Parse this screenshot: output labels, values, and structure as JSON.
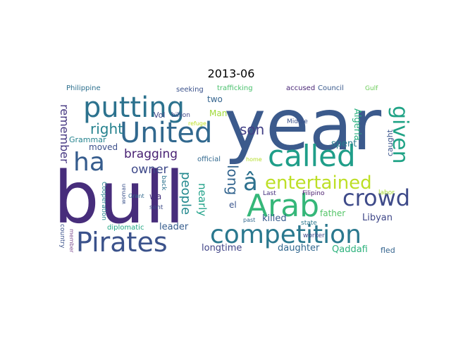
{
  "figure": {
    "title": "2013-06"
  },
  "wordcloud": {
    "palette": "viridis",
    "words": [
      {
        "text": "year",
        "color": "#3b5a8c"
      },
      {
        "text": "bull",
        "color": "#472d7b"
      },
      {
        "text": "putting",
        "color": "#2c728e"
      },
      {
        "text": "United",
        "color": "#31688e"
      },
      {
        "text": "called",
        "color": "#1f9e89"
      },
      {
        "text": "Arab",
        "color": "#35b779"
      },
      {
        "text": "competition",
        "color": "#2a788e"
      },
      {
        "text": "Pirates",
        "color": "#3b528b"
      },
      {
        "text": "ha",
        "color": "#365c8d"
      },
      {
        "text": "given",
        "color": "#20a386"
      },
      {
        "text": "crowd",
        "color": "#3e4a89"
      },
      {
        "text": "entertained",
        "color": "#bddf26"
      },
      {
        "text": "â",
        "color": "#2d718e"
      },
      {
        "text": "bragging",
        "color": "#482173"
      },
      {
        "text": "owner",
        "color": "#3e4989"
      },
      {
        "text": "right",
        "color": "#26828e"
      },
      {
        "text": "son",
        "color": "#424086"
      },
      {
        "text": "long",
        "color": "#32648e"
      },
      {
        "text": "remember",
        "color": "#453781"
      },
      {
        "text": "people",
        "color": "#23898e"
      },
      {
        "text": "nearly",
        "color": "#1fa188"
      },
      {
        "text": "Algeria",
        "color": "#2ab07f"
      },
      {
        "text": "caught",
        "color": "#3a548c"
      },
      {
        "text": "spent",
        "color": "#287c8e"
      },
      {
        "text": "Libyan",
        "color": "#3f4788"
      },
      {
        "text": "killed",
        "color": "#375b8d"
      },
      {
        "text": "father",
        "color": "#54c568"
      },
      {
        "text": "leader",
        "color": "#365d8d"
      },
      {
        "text": "longtime",
        "color": "#414487"
      },
      {
        "text": "daughter",
        "color": "#31678e"
      },
      {
        "text": "Qaddafi",
        "color": "#2db27d"
      },
      {
        "text": "fled",
        "color": "#33638d"
      },
      {
        "text": "moved",
        "color": "#3c4f8a"
      },
      {
        "text": "Grammar",
        "color": "#25838e"
      },
      {
        "text": "two",
        "color": "#33638d"
      },
      {
        "text": "Man",
        "color": "#a0da39"
      },
      {
        "text": "el",
        "color": "#3a548c"
      },
      {
        "text": "wa",
        "color": "#46327e"
      },
      {
        "text": "Vol",
        "color": "#404688"
      },
      {
        "text": "official",
        "color": "#31688e"
      },
      {
        "text": "seeking",
        "color": "#3b528b"
      },
      {
        "text": "trafficking",
        "color": "#4ac16d"
      },
      {
        "text": "accused",
        "color": "#482475"
      },
      {
        "text": "Council",
        "color": "#38598c"
      },
      {
        "text": "Gulf",
        "color": "#6ccd5a"
      },
      {
        "text": "Philippine",
        "color": "#2d708e"
      },
      {
        "text": "billion",
        "color": "#3f4889"
      },
      {
        "text": "refuge",
        "color": "#bddf26"
      },
      {
        "text": "Middle",
        "color": "#3b528b"
      },
      {
        "text": "home",
        "color": "#b5de2b"
      },
      {
        "text": "Grant",
        "color": "#30698e"
      },
      {
        "text": "back",
        "color": "#2c738e"
      },
      {
        "text": "woman",
        "color": "#3b528b"
      },
      {
        "text": "sent",
        "color": "#3e4c8a"
      },
      {
        "text": "Cooperation",
        "color": "#25858e"
      },
      {
        "text": "diplomatic",
        "color": "#22a884"
      },
      {
        "text": "past",
        "color": "#31688e"
      },
      {
        "text": "Last",
        "color": "#46307e"
      },
      {
        "text": "Filipino",
        "color": "#481b6d"
      },
      {
        "text": "labor",
        "color": "#a8db34"
      },
      {
        "text": "state",
        "color": "#2a788e"
      },
      {
        "text": "worker",
        "color": "#3f4889"
      },
      {
        "text": "country",
        "color": "#3b528b"
      },
      {
        "text": "member",
        "color": "#7e4e90"
      }
    ]
  }
}
